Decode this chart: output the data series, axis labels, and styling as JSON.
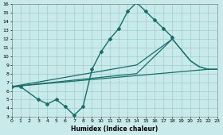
{
  "xlabel": "Humidex (Indice chaleur)",
  "bg_color": "#c8eaea",
  "line_color": "#1a6e6a",
  "grid_color": "#a0cccc",
  "xlim": [
    0,
    23
  ],
  "ylim": [
    3,
    16
  ],
  "xticks": [
    0,
    1,
    2,
    3,
    4,
    5,
    6,
    7,
    8,
    9,
    10,
    11,
    12,
    13,
    14,
    15,
    16,
    17,
    18,
    19,
    20,
    21,
    22,
    23
  ],
  "yticks": [
    3,
    4,
    5,
    6,
    7,
    8,
    9,
    10,
    11,
    12,
    13,
    14,
    15,
    16
  ],
  "series": [
    {
      "x": [
        0,
        1,
        3,
        4,
        5,
        6,
        7,
        8,
        9,
        10,
        11,
        12,
        13,
        14,
        15,
        16,
        17,
        18
      ],
      "y": [
        6.5,
        6.5,
        5.0,
        4.5,
        5.0,
        4.2,
        3.2,
        4.2,
        8.5,
        10.5,
        12.0,
        13.2,
        15.2,
        16.2,
        15.2,
        14.2,
        13.2,
        12.2
      ],
      "marker": "D",
      "markersize": 2.0,
      "linewidth": 1.0
    },
    {
      "x": [
        0,
        22,
        23
      ],
      "y": [
        6.5,
        8.5,
        8.5
      ],
      "marker": null,
      "linewidth": 0.9
    },
    {
      "x": [
        0,
        14,
        18,
        20,
        21,
        22,
        23
      ],
      "y": [
        6.5,
        9.0,
        12.0,
        9.5,
        8.8,
        8.5,
        8.5
      ],
      "marker": null,
      "linewidth": 0.9
    },
    {
      "x": [
        0,
        14,
        18,
        20,
        21,
        22,
        23
      ],
      "y": [
        6.5,
        8.0,
        12.0,
        9.5,
        8.8,
        8.5,
        8.5
      ],
      "marker": null,
      "linewidth": 0.9
    }
  ]
}
